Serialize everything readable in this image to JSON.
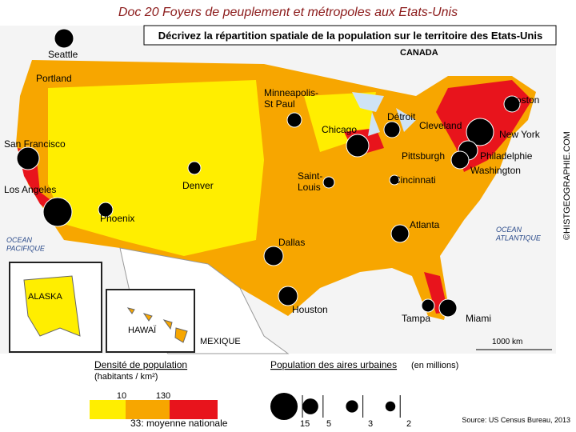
{
  "header": {
    "title": "Doc 20 Foyers de peuplement et métropoles aux Etats-Unis",
    "subtitle": "Décrivez la répartition spatiale de la population sur le territoire des Etats-Unis"
  },
  "map": {
    "cities": [
      "Seattle",
      "Portland",
      "Minneapolis-\nSt Paul",
      "San Francisco",
      "Los Angeles",
      "Denver",
      "Phoenix",
      "Dallas",
      "Houston",
      "Chicago",
      "Détroit",
      "Cleveland",
      "Pittsburgh",
      "Saint-\nLouis",
      "Cincinnati",
      "Atlanta",
      "Tampa",
      "Miami",
      "Boston",
      "New York",
      "Philadelphie",
      "Washington"
    ],
    "regions": [
      "CANADA",
      "MEXIQUE",
      "ALASKA",
      "HAWAÏ"
    ],
    "oceans": [
      "OCEAN\nPACIFIQUE",
      "OCEAN\nATLANTIQUE"
    ],
    "scale": "1000 km",
    "credit": "©HISTGEOGRAPHIE.COM"
  },
  "legend_density": {
    "title": "Densité de population",
    "unit": "(habitants / km²)",
    "thresholds": [
      "10",
      "130"
    ],
    "average": "33: moyenne nationale"
  },
  "legend_population": {
    "title": "Population des aires urbaines",
    "unit": "(en millions)",
    "values": [
      15,
      5,
      3,
      2
    ]
  },
  "source": "Source: US Census Bureau, 2013"
}
